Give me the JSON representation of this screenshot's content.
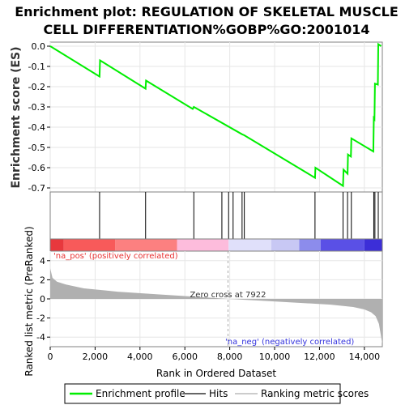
{
  "chart_data": {
    "type": "line",
    "title_line1": "Enrichment plot: REGULATION OF SKELETAL MUSCLE",
    "title_line2": "CELL DIFFERENTIATION%GOBP%GO:2001014",
    "es_ylabel": "Enrichment score (ES)",
    "metric_ylabel": "Ranked list metric (PreRanked)",
    "xlabel": "Rank in Ordered Dataset",
    "xlim": [
      0,
      14800
    ],
    "es_ylim": [
      -0.72,
      0.02
    ],
    "metric_ylim": [
      -5,
      5
    ],
    "x_ticks": [
      0,
      2000,
      4000,
      6000,
      8000,
      10000,
      12000,
      14000
    ],
    "x_tick_labels": [
      "0",
      "2,000",
      "4,000",
      "6,000",
      "8,000",
      "10,000",
      "12,000",
      "14,000"
    ],
    "es_ticks": [
      0.0,
      -0.1,
      -0.2,
      -0.3,
      -0.4,
      -0.5,
      -0.6,
      -0.7
    ],
    "es_tick_labels": [
      "0.0",
      "-0.1",
      "-0.2",
      "-0.3",
      "-0.4",
      "-0.5",
      "-0.6",
      "-0.7"
    ],
    "metric_ticks": [
      4,
      2,
      0,
      -2,
      -4
    ],
    "metric_tick_labels": [
      "4",
      "2",
      "0",
      "-2",
      "-4"
    ],
    "series": [
      {
        "name": "Enrichment profile",
        "color": "#00ee00",
        "x": [
          0,
          2200,
          2220,
          4250,
          4270,
          6350,
          6400,
          8550,
          8650,
          11800,
          11820,
          13050,
          13070,
          13250,
          13270,
          13400,
          13420,
          14400,
          14420,
          14450,
          14470,
          14600,
          14620,
          14750
        ],
        "y": [
          0.0,
          -0.15,
          -0.07,
          -0.21,
          -0.17,
          -0.31,
          -0.3,
          -0.435,
          -0.44,
          -0.65,
          -0.6,
          -0.69,
          -0.61,
          -0.63,
          -0.535,
          -0.545,
          -0.455,
          -0.52,
          -0.355,
          -0.36,
          -0.185,
          -0.19,
          0.01,
          0.0
        ]
      }
    ],
    "hits": [
      2200,
      4250,
      6400,
      7650,
      7950,
      8150,
      8550,
      8650,
      11800,
      13050,
      13250,
      13420,
      14420,
      14470,
      14620
    ],
    "zero_cross": 7922,
    "zero_cross_label": "Zero cross at 7922",
    "pos_label": "'na_pos' (positively correlated)",
    "neg_label": "'na_neg' (negatively correlated)",
    "metric_profile": {
      "x": [
        0,
        100,
        300,
        700,
        1500,
        3000,
        5000,
        6500,
        7922,
        9500,
        11000,
        12500,
        13500,
        14000,
        14300,
        14500,
        14650,
        14750,
        14800
      ],
      "y": [
        3.2,
        2.2,
        1.8,
        1.5,
        1.1,
        0.75,
        0.45,
        0.22,
        0.0,
        -0.2,
        -0.4,
        -0.6,
        -0.85,
        -1.1,
        -1.4,
        -1.8,
        -2.6,
        -4.0,
        -4.7
      ]
    },
    "heatmap_colors": [
      "#e8383d",
      "#f85a5a",
      "#fc8080",
      "#fdbcdc",
      "#e0e0fa",
      "#c8c8f4",
      "#8c8cec",
      "#5a50e6",
      "#3c2ed8"
    ],
    "heatmap_bounds": [
      0,
      600,
      2900,
      5650,
      7950,
      9850,
      11100,
      12050,
      14000,
      14800
    ],
    "legend": {
      "profile": "Enrichment profile",
      "hits": "Hits",
      "metric": "Ranking metric scores"
    }
  }
}
